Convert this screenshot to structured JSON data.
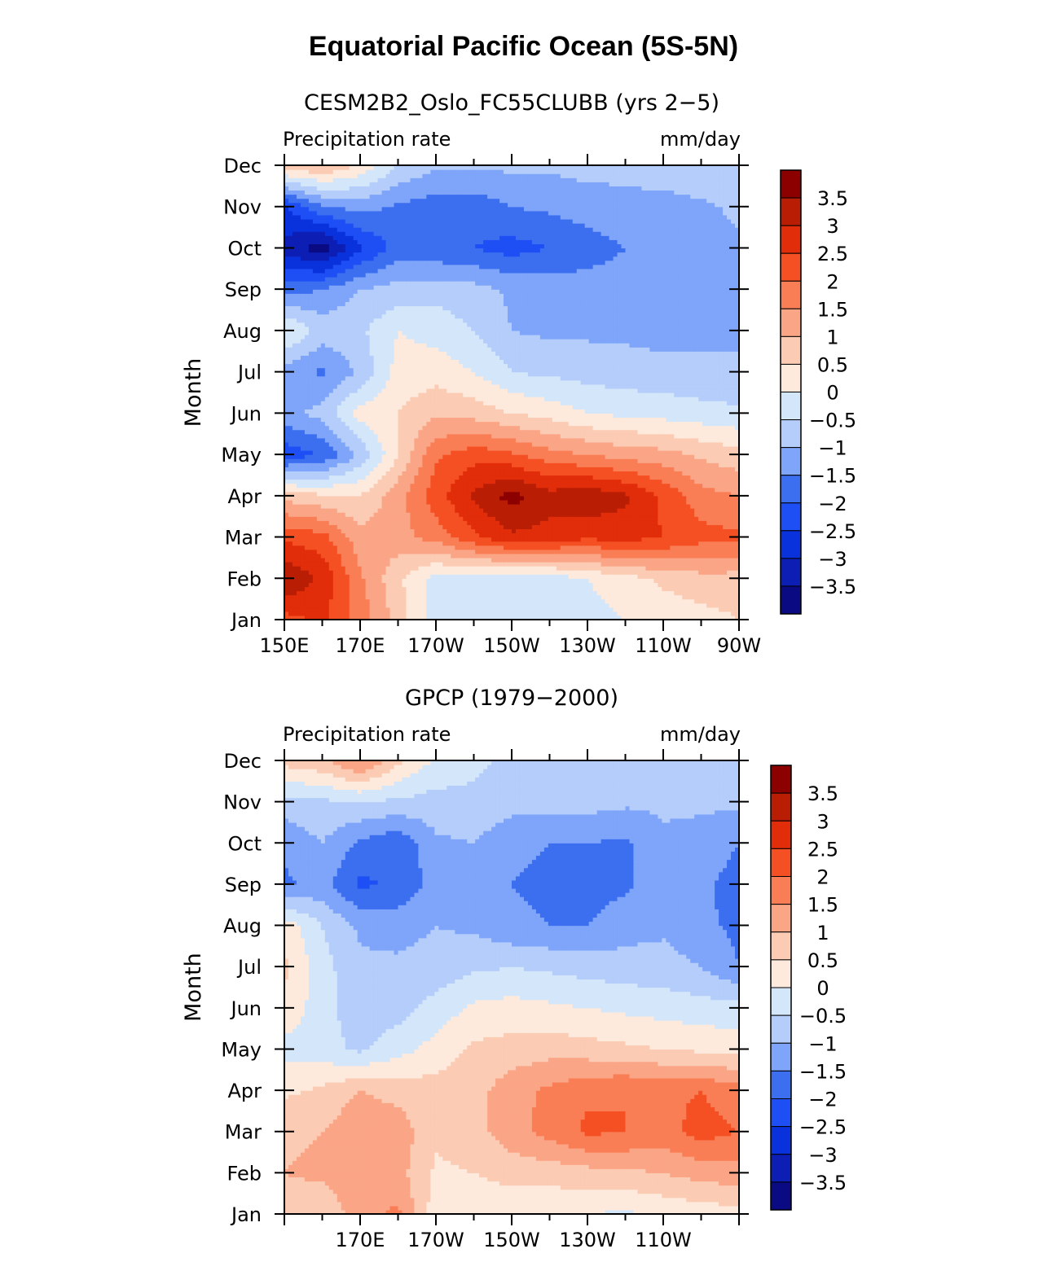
{
  "title": "Equatorial Pacific Ocean (5S-5N)",
  "colors": {
    "levels": [
      "#0a0a82",
      "#0c1eb4",
      "#0a32dc",
      "#1e4ff5",
      "#3c6ef0",
      "#7ea5fa",
      "#b4cdfa",
      "#d4e6fa",
      "#fdeadc",
      "#fccbb4",
      "#fba587",
      "#fa7e55",
      "#f55023",
      "#e12d0a",
      "#b91e05",
      "#8c0000"
    ],
    "colorbar_labels": [
      "3.5",
      "3",
      "2.5",
      "2",
      "1.5",
      "1",
      "0.5",
      "0",
      "−0.5",
      "−1",
      "−1.5",
      "−2",
      "−2.5",
      "−3",
      "−3.5"
    ]
  },
  "chart_data": [
    {
      "type": "heatmap",
      "title": "CESM2B2_Oslo_FC55CLUBB (yrs 2−5)",
      "left_label": "Precipitation rate",
      "right_label": "mm/day",
      "ylabel": "Month",
      "xlabel": "",
      "x_ticks": [
        "150E",
        "170E",
        "170W",
        "150W",
        "130W",
        "110W",
        "90W"
      ],
      "x": [
        150,
        160,
        170,
        180,
        190,
        200,
        210,
        220,
        230,
        240,
        250,
        260,
        270
      ],
      "y": [
        "Jan",
        "Feb",
        "Mar",
        "Apr",
        "May",
        "Jun",
        "Jul",
        "Aug",
        "Sep",
        "Oct",
        "Nov",
        "Dec"
      ],
      "values": [
        [
          2.3,
          2.6,
          1.8,
          0.8,
          -0.3,
          -0.4,
          -0.4,
          -0.3,
          -0.2,
          0.0,
          0.2,
          0.3,
          0.5
        ],
        [
          3.5,
          2.9,
          1.6,
          0.6,
          -0.2,
          -0.2,
          -0.5,
          -0.3,
          0.0,
          0.3,
          0.6,
          0.8,
          0.8
        ],
        [
          2.4,
          2.2,
          1.2,
          1.3,
          1.7,
          2.4,
          2.9,
          2.8,
          2.6,
          2.7,
          2.5,
          2.2,
          2.1
        ],
        [
          0.8,
          0.6,
          0.5,
          1.3,
          2.3,
          3.1,
          3.7,
          3.2,
          3.4,
          3.1,
          2.4,
          1.7,
          1.5
        ],
        [
          -2.3,
          -2.0,
          -0.9,
          0.5,
          1.9,
          2.3,
          2.1,
          1.7,
          1.5,
          1.3,
          1.2,
          0.9,
          0.7
        ],
        [
          -1.2,
          -0.8,
          0.2,
          0.5,
          0.9,
          0.8,
          0.5,
          0.3,
          0.0,
          -0.1,
          -0.2,
          -0.3,
          -0.4
        ],
        [
          -1.2,
          -1.6,
          -0.9,
          0.2,
          0.3,
          0.0,
          -0.5,
          -0.6,
          -0.7,
          -0.8,
          -0.8,
          -0.9,
          -0.9
        ],
        [
          0.1,
          -0.7,
          -0.6,
          0.0,
          -0.2,
          -0.5,
          -1.0,
          -1.1,
          -1.1,
          -1.1,
          -1.2,
          -1.1,
          -1.1
        ],
        [
          -1.7,
          -1.5,
          -1.0,
          -0.8,
          -0.7,
          -0.8,
          -1.1,
          -1.2,
          -1.3,
          -1.3,
          -1.2,
          -1.1,
          -1.1
        ],
        [
          -3.2,
          -3.8,
          -2.6,
          -1.8,
          -1.9,
          -2.0,
          -2.2,
          -2.0,
          -1.7,
          -1.5,
          -1.3,
          -1.1,
          -1.1
        ],
        [
          -2.6,
          -1.6,
          -1.3,
          -1.6,
          -1.8,
          -1.8,
          -1.5,
          -1.4,
          -1.3,
          -1.2,
          -1.2,
          -1.1,
          -0.9
        ],
        [
          0.8,
          1.0,
          0.4,
          -0.5,
          -0.9,
          -0.9,
          -0.9,
          -0.9,
          -0.8,
          -0.8,
          -0.7,
          -0.6,
          -0.6
        ]
      ]
    },
    {
      "type": "heatmap",
      "title": "GPCP (1979−2000)",
      "left_label": "Precipitation rate",
      "right_label": "mm/day",
      "ylabel": "Month",
      "xlabel": "",
      "x_ticks": [
        "170E",
        "170W",
        "150W",
        "130W",
        "110W"
      ],
      "x": [
        150,
        160,
        170,
        180,
        190,
        200,
        210,
        220,
        230,
        240,
        250,
        260,
        270
      ],
      "y": [
        "Jan",
        "Feb",
        "Mar",
        "Apr",
        "May",
        "Jun",
        "Jul",
        "Aug",
        "Sep",
        "Oct",
        "Nov",
        "Dec"
      ],
      "values": [
        [
          0.8,
          0.6,
          1.3,
          1.6,
          0.2,
          0.1,
          0.1,
          0.1,
          0.0,
          -0.1,
          0.1,
          0.2,
          0.3
        ],
        [
          1.0,
          1.1,
          1.3,
          1.2,
          0.4,
          0.5,
          0.7,
          0.7,
          0.8,
          0.9,
          1.0,
          1.2,
          1.3
        ],
        [
          0.9,
          1.0,
          1.4,
          1.3,
          0.6,
          0.8,
          1.3,
          1.7,
          2.1,
          2.0,
          1.8,
          2.2,
          2.0
        ],
        [
          0.4,
          0.6,
          1.0,
          0.8,
          0.7,
          0.8,
          1.3,
          1.6,
          1.9,
          2.0,
          1.9,
          2.0,
          1.7
        ],
        [
          -0.2,
          -0.3,
          -0.6,
          -0.2,
          0.2,
          0.6,
          0.7,
          0.8,
          0.7,
          0.6,
          0.5,
          0.4,
          0.3
        ],
        [
          0.4,
          -0.3,
          -0.8,
          -0.7,
          -0.3,
          0.1,
          0.2,
          0.1,
          0.0,
          -0.1,
          -0.2,
          -0.3,
          -0.3
        ],
        [
          0.6,
          -0.3,
          -0.9,
          -0.9,
          -0.8,
          -0.6,
          -0.5,
          -0.6,
          -0.7,
          -0.8,
          -0.8,
          -1.0,
          -1.5
        ],
        [
          0.3,
          -0.5,
          -1.1,
          -1.2,
          -1.0,
          -1.1,
          -1.4,
          -1.5,
          -1.5,
          -1.2,
          -1.1,
          -1.4,
          -1.6
        ],
        [
          -1.6,
          -1.3,
          -2.1,
          -1.9,
          -1.3,
          -1.1,
          -1.5,
          -1.6,
          -1.7,
          -1.6,
          -1.2,
          -1.4,
          -1.7
        ],
        [
          -1.4,
          -1.0,
          -1.6,
          -1.9,
          -1.1,
          -1.0,
          -1.4,
          -1.5,
          -1.5,
          -1.6,
          -1.1,
          -1.2,
          -1.5
        ],
        [
          -0.7,
          -0.6,
          -0.5,
          -0.6,
          -0.7,
          -0.6,
          -0.8,
          -0.8,
          -0.8,
          -0.9,
          -0.9,
          -0.9,
          -0.9
        ],
        [
          0.7,
          0.9,
          1.6,
          0.6,
          -0.1,
          -0.4,
          -0.6,
          -0.7,
          -0.7,
          -0.8,
          -0.8,
          -0.8,
          -0.8
        ]
      ]
    }
  ]
}
